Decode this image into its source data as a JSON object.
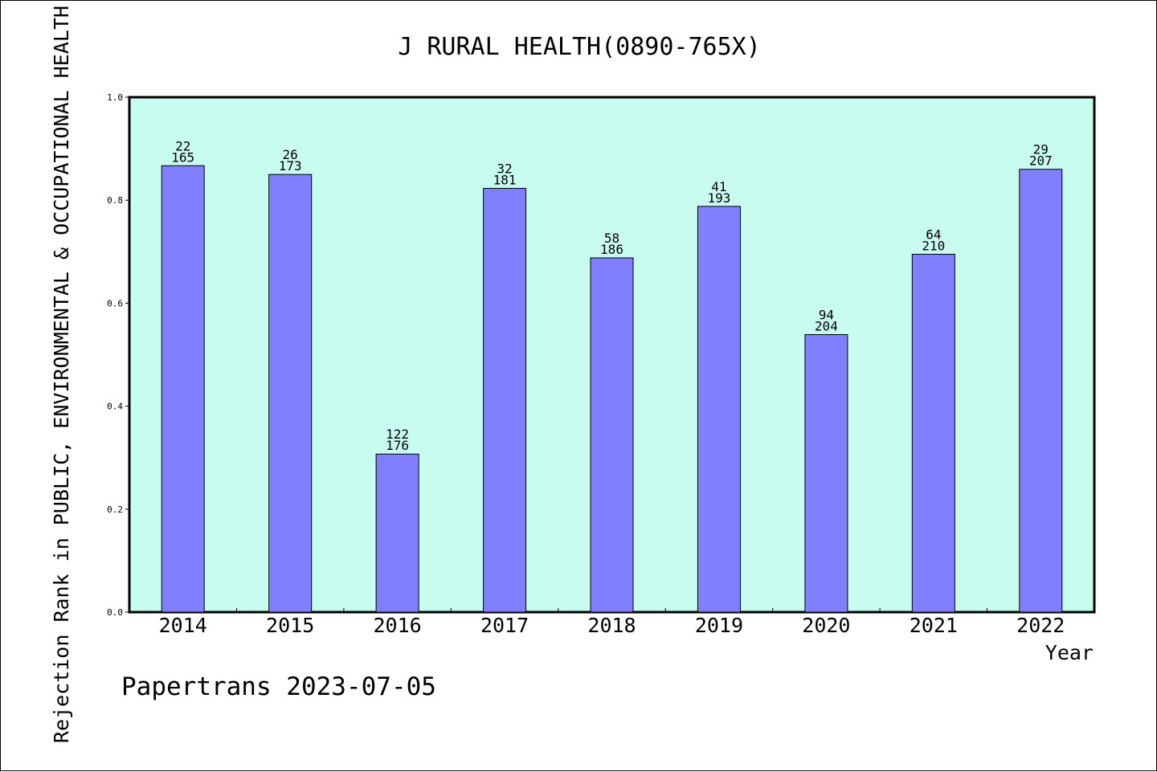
{
  "chart_data": {
    "type": "bar",
    "title": "J RURAL HEALTH(0890-765X)",
    "xlabel": "Year",
    "ylabel": "Rejection Rank in PUBLIC, ENVIRONMENTAL & OCCUPATIONAL HEALTH",
    "ylim": [
      0,
      1.0
    ],
    "yticks": [
      "0.0",
      "0.2",
      "0.4",
      "0.6",
      "0.8",
      "1.0"
    ],
    "categories": [
      "2014",
      "2015",
      "2016",
      "2017",
      "2018",
      "2019",
      "2020",
      "2021",
      "2022"
    ],
    "values": [
      0.867,
      0.85,
      0.307,
      0.823,
      0.688,
      0.788,
      0.539,
      0.695,
      0.86
    ],
    "rank_labels": [
      "22",
      "26",
      "122",
      "32",
      "58",
      "41",
      "94",
      "64",
      "29"
    ],
    "total_labels": [
      "165",
      "173",
      "176",
      "181",
      "186",
      "193",
      "204",
      "210",
      "207"
    ],
    "grid": false,
    "colors": {
      "plot_background": "#c8fcee",
      "bar_fill": "#8080ff",
      "bar_stroke": "#000000"
    }
  },
  "footer": {
    "credit": "Papertrans 2023-07-05"
  }
}
